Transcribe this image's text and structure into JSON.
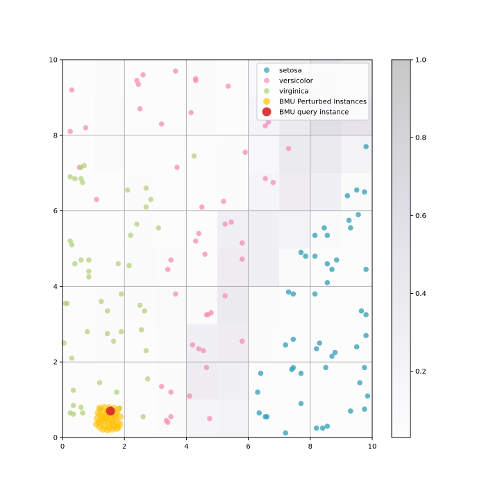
{
  "chart_data": {
    "type": "scatter",
    "title": "",
    "xlabel": "",
    "ylabel": "",
    "xlim": [
      0,
      10
    ],
    "ylim": [
      0,
      10
    ],
    "xticks": [
      "0",
      "2",
      "4",
      "6",
      "8",
      "10"
    ],
    "yticks": [
      "0",
      "2",
      "4",
      "6",
      "8",
      "10"
    ],
    "grid": true,
    "legend_position": "top-right",
    "heatmap": {
      "rows": 10,
      "cols": 10,
      "x_extent": [
        0,
        10
      ],
      "y_extent": [
        0,
        10
      ],
      "values_top_to_bottom": [
        [
          0.05,
          0.08,
          0.06,
          0.05,
          0.07,
          0.05,
          0.15,
          0.3,
          0.5,
          0.4
        ],
        [
          0.06,
          0.1,
          0.06,
          0.05,
          0.08,
          0.06,
          0.2,
          0.4,
          0.6,
          0.5
        ],
        [
          0.05,
          0.1,
          0.05,
          0.05,
          0.06,
          0.08,
          0.15,
          0.4,
          0.4,
          0.25
        ],
        [
          0.05,
          0.05,
          0.08,
          0.06,
          0.05,
          0.08,
          0.2,
          0.35,
          0.3,
          0.1
        ],
        [
          0.06,
          0.06,
          0.08,
          0.05,
          0.05,
          0.3,
          0.3,
          0.25,
          0.1,
          0.05
        ],
        [
          0.05,
          0.05,
          0.1,
          0.08,
          0.05,
          0.35,
          0.3,
          0.1,
          0.05,
          0.05
        ],
        [
          0.05,
          0.08,
          0.08,
          0.1,
          0.08,
          0.4,
          0.1,
          0.05,
          0.05,
          0.05
        ],
        [
          0.05,
          0.08,
          0.06,
          0.08,
          0.3,
          0.35,
          0.08,
          0.05,
          0.05,
          0.05
        ],
        [
          0.05,
          0.05,
          0.06,
          0.08,
          0.35,
          0.3,
          0.05,
          0.05,
          0.05,
          0.05
        ],
        [
          0.05,
          0.05,
          0.06,
          0.08,
          0.2,
          0.25,
          0.05,
          0.05,
          0.05,
          0.05
        ]
      ]
    },
    "colorbar": {
      "min": 0,
      "max": 1,
      "display_min": 0.03,
      "ticks": [
        "0.2",
        "0.4",
        "0.6",
        "0.8",
        "1.0"
      ],
      "color_low": "#ffffff",
      "color_mid": "#e1dfe6",
      "color_high": "#c8c8c8"
    },
    "series": [
      {
        "name": "setosa",
        "color": "#2f9db5",
        "points": [
          [
            9.8,
            7.7
          ],
          [
            9.2,
            6.4
          ],
          [
            9.5,
            6.55
          ],
          [
            9.75,
            6.5
          ],
          [
            9.55,
            5.9
          ],
          [
            9.25,
            5.75
          ],
          [
            9.3,
            5.55
          ],
          [
            8.45,
            5.55
          ],
          [
            8.55,
            5.35
          ],
          [
            8.15,
            5.35
          ],
          [
            7.7,
            4.9
          ],
          [
            7.85,
            4.8
          ],
          [
            8.15,
            4.8
          ],
          [
            8.85,
            4.7
          ],
          [
            8.55,
            4.6
          ],
          [
            8.7,
            4.45
          ],
          [
            9.8,
            4.45
          ],
          [
            8.55,
            4.1
          ],
          [
            7.3,
            3.85
          ],
          [
            7.45,
            3.8
          ],
          [
            8.15,
            3.8
          ],
          [
            9.65,
            3.35
          ],
          [
            9.8,
            3.25
          ],
          [
            9.8,
            2.7
          ],
          [
            7.45,
            2.6
          ],
          [
            8.3,
            2.5
          ],
          [
            7.2,
            2.45
          ],
          [
            9.5,
            2.4
          ],
          [
            8.2,
            2.35
          ],
          [
            8.8,
            2.25
          ],
          [
            8.7,
            2.15
          ],
          [
            7.45,
            1.85
          ],
          [
            7.4,
            1.8
          ],
          [
            8.5,
            1.85
          ],
          [
            9.75,
            1.85
          ],
          [
            7.7,
            1.7
          ],
          [
            6.4,
            1.7
          ],
          [
            9.6,
            1.45
          ],
          [
            6.3,
            1.2
          ],
          [
            9.85,
            1.1
          ],
          [
            7.7,
            0.9
          ],
          [
            9.3,
            0.7
          ],
          [
            9.75,
            0.75
          ],
          [
            6.35,
            0.65
          ],
          [
            6.55,
            0.55
          ],
          [
            6.6,
            0.55
          ],
          [
            8.2,
            0.25
          ],
          [
            8.4,
            0.25
          ],
          [
            8.55,
            0.3
          ],
          [
            7.2,
            0.12
          ]
        ]
      },
      {
        "name": "versicolor",
        "color": "#f58fb2",
        "points": [
          [
            2.6,
            9.6
          ],
          [
            3.65,
            9.7
          ],
          [
            2.4,
            9.45
          ],
          [
            2.45,
            9.35
          ],
          [
            4.3,
            9.5
          ],
          [
            4.3,
            9.45
          ],
          [
            5.35,
            9.3
          ],
          [
            0.3,
            9.2
          ],
          [
            2.5,
            8.7
          ],
          [
            4.15,
            8.6
          ],
          [
            3.2,
            8.3
          ],
          [
            6.65,
            8.35
          ],
          [
            6.55,
            8.25
          ],
          [
            0.75,
            8.2
          ],
          [
            0.25,
            8.1
          ],
          [
            7.3,
            7.65
          ],
          [
            5.9,
            7.55
          ],
          [
            0.55,
            7.15
          ],
          [
            3.7,
            7.15
          ],
          [
            6.55,
            6.85
          ],
          [
            6.8,
            6.75
          ],
          [
            1.1,
            6.3
          ],
          [
            5.2,
            6.25
          ],
          [
            4.5,
            6.1
          ],
          [
            5.25,
            5.65
          ],
          [
            5.45,
            5.7
          ],
          [
            4.4,
            5.4
          ],
          [
            4.3,
            5.2
          ],
          [
            5.8,
            5.15
          ],
          [
            4.6,
            4.85
          ],
          [
            3.5,
            4.7
          ],
          [
            5.8,
            4.72
          ],
          [
            3.4,
            4.45
          ],
          [
            3.65,
            3.8
          ],
          [
            5.25,
            3.75
          ],
          [
            4.65,
            3.25
          ],
          [
            4.8,
            3.3
          ],
          [
            4.7,
            3.25
          ],
          [
            5.8,
            2.55
          ],
          [
            4.2,
            2.45
          ],
          [
            4.4,
            2.35
          ],
          [
            4.55,
            2.3
          ],
          [
            4.65,
            1.85
          ],
          [
            3.2,
            1.35
          ],
          [
            3.5,
            1.2
          ],
          [
            4.1,
            1.1
          ],
          [
            3.5,
            0.55
          ],
          [
            3.35,
            0.45
          ],
          [
            3.4,
            0.4
          ],
          [
            4.75,
            0.5
          ]
        ]
      },
      {
        "name": "virginica",
        "color": "#b4d27d",
        "points": [
          [
            4.25,
            7.45
          ],
          [
            0.7,
            7.2
          ],
          [
            0.6,
            7.15
          ],
          [
            0.25,
            6.9
          ],
          [
            0.4,
            6.85
          ],
          [
            0.6,
            6.85
          ],
          [
            0.65,
            6.75
          ],
          [
            2.1,
            6.55
          ],
          [
            2.7,
            6.6
          ],
          [
            2.85,
            6.3
          ],
          [
            2.7,
            6.1
          ],
          [
            2.4,
            5.65
          ],
          [
            3.1,
            5.55
          ],
          [
            2.2,
            5.35
          ],
          [
            0.25,
            5.2
          ],
          [
            0.3,
            5.1
          ],
          [
            0.6,
            4.7
          ],
          [
            0.85,
            4.7
          ],
          [
            0.4,
            4.6
          ],
          [
            1.8,
            4.6
          ],
          [
            2.15,
            4.55
          ],
          [
            0.85,
            4.4
          ],
          [
            0.85,
            4.25
          ],
          [
            1.9,
            3.8
          ],
          [
            1.25,
            3.6
          ],
          [
            0.1,
            3.55
          ],
          [
            0.15,
            3.55
          ],
          [
            2.5,
            3.5
          ],
          [
            1.45,
            3.35
          ],
          [
            2.65,
            3.35
          ],
          [
            2.55,
            2.85
          ],
          [
            1.9,
            2.8
          ],
          [
            0.8,
            2.8
          ],
          [
            1.45,
            2.75
          ],
          [
            1.65,
            2.55
          ],
          [
            0.05,
            2.5
          ],
          [
            2.7,
            2.3
          ],
          [
            0.3,
            2.1
          ],
          [
            2.75,
            1.55
          ],
          [
            1.2,
            1.45
          ],
          [
            0.35,
            1.25
          ],
          [
            1.75,
            1.2
          ],
          [
            0.35,
            0.85
          ],
          [
            0.6,
            0.8
          ],
          [
            0.25,
            0.65
          ],
          [
            0.35,
            0.62
          ],
          [
            0.65,
            0.65
          ],
          [
            1.2,
            0.75
          ],
          [
            2.6,
            0.55
          ],
          [
            1.85,
            0.78
          ]
        ]
      },
      {
        "name": "BMU Perturbed Instances",
        "color": "#ffc000",
        "points": [
          [
            1.2,
            0.78
          ],
          [
            1.35,
            0.8
          ],
          [
            1.5,
            0.79
          ],
          [
            1.65,
            0.78
          ],
          [
            1.8,
            0.75
          ],
          [
            1.15,
            0.65
          ],
          [
            1.3,
            0.7
          ],
          [
            1.45,
            0.68
          ],
          [
            1.6,
            0.7
          ],
          [
            1.75,
            0.66
          ],
          [
            1.12,
            0.5
          ],
          [
            1.28,
            0.55
          ],
          [
            1.42,
            0.52
          ],
          [
            1.58,
            0.56
          ],
          [
            1.72,
            0.5
          ],
          [
            1.86,
            0.55
          ],
          [
            1.18,
            0.4
          ],
          [
            1.33,
            0.42
          ],
          [
            1.48,
            0.38
          ],
          [
            1.63,
            0.43
          ],
          [
            1.78,
            0.4
          ],
          [
            1.2,
            0.28
          ],
          [
            1.36,
            0.3
          ],
          [
            1.5,
            0.26
          ],
          [
            1.66,
            0.3
          ],
          [
            1.8,
            0.27
          ],
          [
            1.3,
            0.22
          ],
          [
            1.45,
            0.2
          ],
          [
            1.6,
            0.22
          ],
          [
            1.75,
            0.24
          ],
          [
            1.22,
            0.6
          ],
          [
            1.55,
            0.62
          ],
          [
            1.7,
            0.58
          ],
          [
            1.4,
            0.6
          ],
          [
            1.85,
            0.35
          ],
          [
            1.1,
            0.35
          ],
          [
            1.25,
            0.45
          ],
          [
            1.62,
            0.35
          ],
          [
            1.38,
            0.5
          ],
          [
            1.52,
            0.45
          ]
        ]
      },
      {
        "name": "BMU query instance",
        "color": "#d62728",
        "points": [
          [
            1.55,
            0.7
          ]
        ]
      }
    ]
  }
}
